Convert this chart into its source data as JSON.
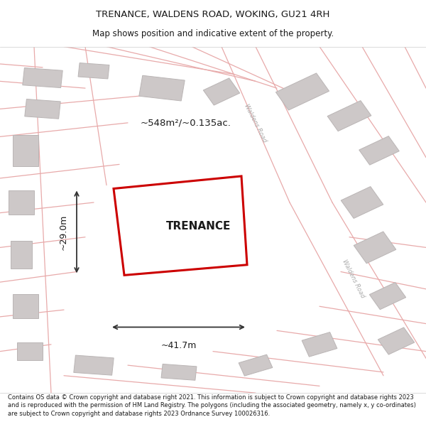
{
  "title": "TRENANCE, WALDENS ROAD, WOKING, GU21 4RH",
  "subtitle": "Map shows position and indicative extent of the property.",
  "footer": "Contains OS data © Crown copyright and database right 2021. This information is subject to Crown copyright and database rights 2023 and is reproduced with the permission of HM Land Registry. The polygons (including the associated geometry, namely x, y co-ordinates) are subject to Crown copyright and database rights 2023 Ordnance Survey 100026316.",
  "property_label": "TRENANCE",
  "area_label": "~548m²/~0.135ac.",
  "width_label": "~41.7m",
  "height_label": "~29.0m",
  "map_bg": "#f2eded",
  "road_color": "#e8aaaa",
  "building_color": "#cdc8c8",
  "building_border": "#bab5b5",
  "property_fill": "#ffffff",
  "property_edge": "#cc0000",
  "dim_line_color": "#333333",
  "text_color": "#1a1a1a",
  "road_label_color": "#aaaaaa",
  "title_fontsize": 9.5,
  "subtitle_fontsize": 8.5,
  "footer_fontsize": 6.0
}
